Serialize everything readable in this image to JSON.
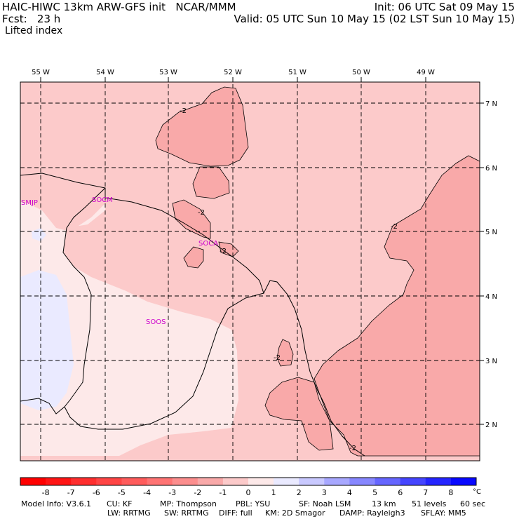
{
  "header": {
    "left_line1": "HAIC-HIWC 13km ARW-GFS init   NCAR/MMM",
    "left_line2": "Fcst:   23 h",
    "left_line3": "Lifted index",
    "right_line1": "Init: 06 UTC Sat 09 May 15",
    "right_line2": "Valid: 05 UTC Sun 10 May 15 (02 LST Sun 10 May 15)"
  },
  "map": {
    "lon_labels": [
      "55 W",
      "54 W",
      "53 W",
      "52 W",
      "51 W",
      "50 W",
      "49 W"
    ],
    "lat_labels": [
      "7 N",
      "6 N",
      "5 N",
      "4 N",
      "3 N",
      "2 N"
    ],
    "stations": [
      {
        "id": "SMJP"
      },
      {
        "id": "SOCM"
      },
      {
        "id": "SOCA"
      },
      {
        "id": "SOOS"
      }
    ],
    "contour_labels": [
      "-2",
      "-2",
      "-2",
      "-2",
      "-2",
      "-2"
    ],
    "colors": {
      "lt_minus1": "#fccaca",
      "lt_minus2": "#f9a9a9",
      "minus1_to_0": "#fde9e9",
      "zero_to_1": "#eaeaff"
    }
  },
  "colorbar": {
    "ticks": [
      "-8",
      "-7",
      "-6",
      "-5",
      "-4",
      "-3",
      "-2",
      "-1",
      "0",
      "1",
      "2",
      "3",
      "4",
      "5",
      "6",
      "7",
      "8"
    ],
    "unit": "°C",
    "colors": [
      "#ff1515",
      "#ff2e2e",
      "#ff4545",
      "#ff5c5c",
      "#ff7474",
      "#fc8e8e",
      "#f9a9a9",
      "#fccaca",
      "#fde9e9",
      "#eaeaff",
      "#c9c9ff",
      "#a8a8ff",
      "#8787ff",
      "#6666ff",
      "#4545ff",
      "#2525ff",
      "#0808ff"
    ]
  },
  "footer": {
    "model_info": "Model Info: V3.6.1",
    "cu": "CU: KF",
    "mp": "MP: Thompson",
    "pbl": "PBL: YSU",
    "sf": "SF: Noah LSM",
    "res": "13 km",
    "levels": "51 levels",
    "dt": "60 sec",
    "lw": "LW: RRTMG",
    "sw": "SW: RRTMG",
    "diff": "DIFF: full",
    "km": "KM: 2D Smagor",
    "damp": "DAMP: Rayleigh3",
    "sflay": "SFLAY: MM5"
  }
}
